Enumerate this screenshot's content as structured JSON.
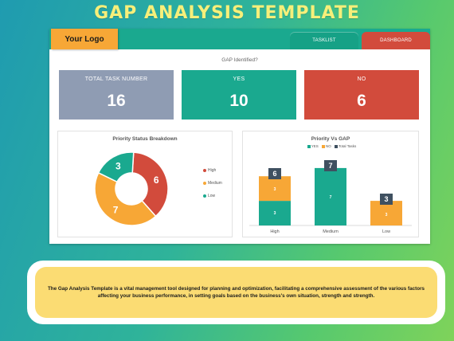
{
  "banner": {
    "title": "GAP ANALYSIS TEMPLATE"
  },
  "header": {
    "logo": "Your Logo",
    "tabs": [
      {
        "label": "TASKLIST"
      },
      {
        "label": "DASHBOARD"
      }
    ]
  },
  "kpi_section": {
    "heading": "GAP Identified?",
    "cards": [
      {
        "label": "TOTAL TASK NUMBER",
        "value": "16",
        "color": "#8f9cb3"
      },
      {
        "label": "YES",
        "value": "10",
        "color": "#1aa98f"
      },
      {
        "label": "NO",
        "value": "6",
        "color": "#d24b3c"
      }
    ]
  },
  "donut": {
    "title": "Priority Status Breakdown",
    "legend": [
      "High",
      "Medium",
      "Low"
    ],
    "colors": [
      "#d24b3c",
      "#f7a736",
      "#1aa98f"
    ],
    "values": [
      6,
      7,
      3
    ]
  },
  "bars": {
    "title": "Priority Vs GAP",
    "legend": [
      "YES",
      "NO",
      "Total Tasks"
    ],
    "colors": {
      "yes": "#1aa98f",
      "no": "#f7a736",
      "total": "#3f5060"
    },
    "categories": [
      "High",
      "Medium",
      "Low"
    ],
    "yes": [
      3,
      7,
      0
    ],
    "no": [
      3,
      0,
      3
    ],
    "total": [
      6,
      7,
      3
    ],
    "yes_labels": [
      "3",
      "7",
      ""
    ],
    "no_labels": [
      "3",
      "",
      "3"
    ],
    "total_labels": [
      "6",
      "7",
      "3"
    ]
  },
  "description": "The Gap Analysis Template is a vital management tool designed for planning and optimization, facilitating a comprehensive assessment of the various factors affecting your business performance, in setting goals based on the business's own situation, strength and strength."
}
